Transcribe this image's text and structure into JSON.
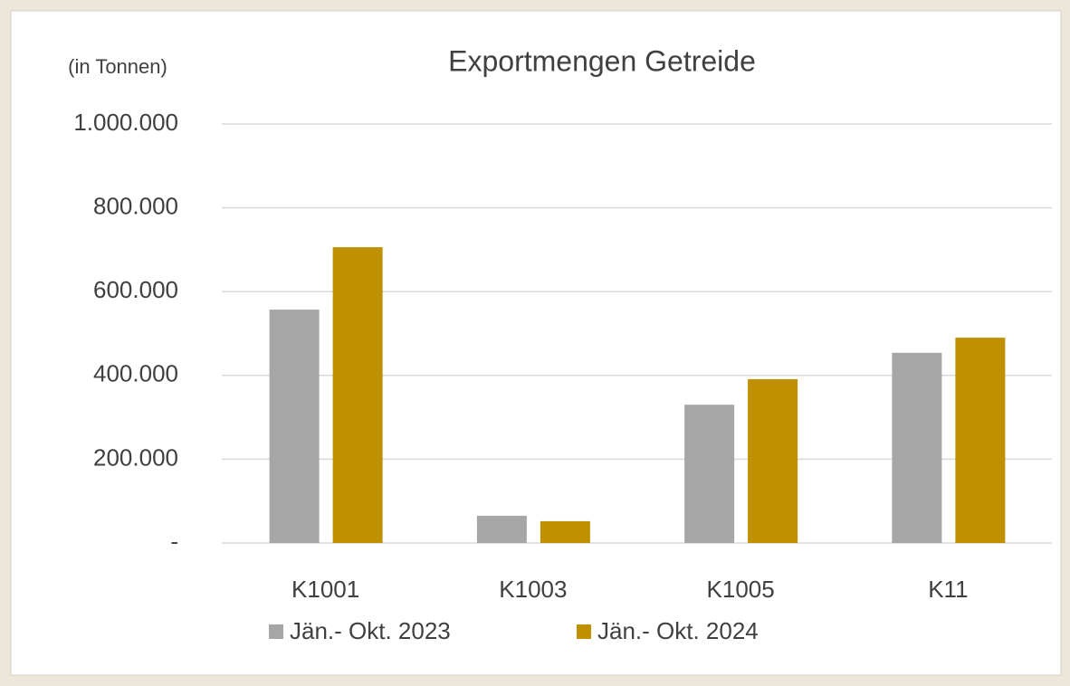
{
  "chart_data": {
    "type": "bar",
    "title": "Exportmengen Getreide",
    "ylabel": "(in Tonnen)",
    "categories": [
      "K1001",
      "K1003",
      "K1005",
      "K11"
    ],
    "series": [
      {
        "name": "Jän.- Okt. 2023",
        "color": "#a6a6a6",
        "values": [
          557000,
          65000,
          330000,
          454000
        ]
      },
      {
        "name": "Jän.- Okt. 2024",
        "color": "#bf9000",
        "values": [
          706000,
          52000,
          391000,
          490000
        ]
      }
    ],
    "ylim": [
      0,
      1000000
    ],
    "yticks": [
      {
        "value": 0,
        "label": "-"
      },
      {
        "value": 200000,
        "label": "200.000"
      },
      {
        "value": 400000,
        "label": "400.000"
      },
      {
        "value": 600000,
        "label": "600.000"
      },
      {
        "value": 800000,
        "label": "800.000"
      },
      {
        "value": 1000000,
        "label": "1.000.000"
      }
    ],
    "grid": true,
    "legend": "bottom"
  }
}
